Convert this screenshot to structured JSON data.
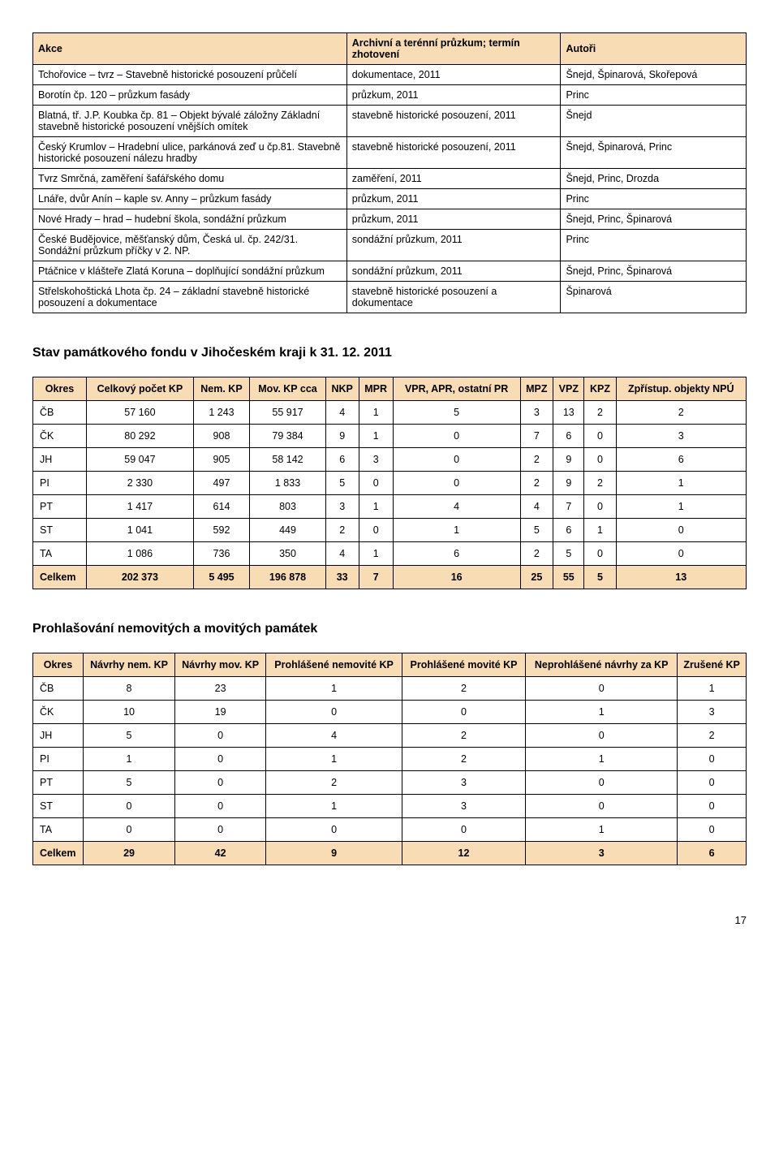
{
  "table1": {
    "headers": {
      "col1": "Akce",
      "col2": "Archivní a terénní průzkum; termín zhotovení",
      "col3": "Autoři"
    },
    "rows": [
      {
        "a": "Tchořovice – tvrz – Stavebně historické posouzení průčelí",
        "b": "dokumentace, 2011",
        "c": "Šnejd, Špinarová, Skořepová"
      },
      {
        "a": "Borotín čp. 120 – průzkum fasády",
        "b": "průzkum, 2011",
        "c": "Princ"
      },
      {
        "a": "Blatná, tř. J.P. Koubka čp. 81 – Objekt bývalé záložny Základní stavebně historické posouzení vnějších omítek",
        "b": "stavebně historické posouzení, 2011",
        "c": "Šnejd"
      },
      {
        "a": "Český Krumlov – Hradební ulice, parkánová zeď u čp.81. Stavebně historické posouzení nálezu hradby",
        "b": "stavebně historické posouzení, 2011",
        "c": "Šnejd, Špinarová, Princ"
      },
      {
        "a": "Tvrz Smrčná, zaměření šafářského domu",
        "b": "zaměření, 2011",
        "c": "Šnejd, Princ, Drozda"
      },
      {
        "a": "Lnáře, dvůr Anín – kaple sv. Anny – průzkum fasády",
        "b": "průzkum, 2011",
        "c": "Princ"
      },
      {
        "a": "Nové Hrady – hrad – hudební škola, sondážní průzkum",
        "b": "průzkum, 2011",
        "c": "Šnejd, Princ, Špinarová"
      },
      {
        "a": "České Budějovice, měšťanský dům, Česká ul. čp. 242/31. Sondážní průzkum příčky v 2. NP.",
        "b": "sondážní průzkum, 2011",
        "c": "Princ"
      },
      {
        "a": "Ptáčnice v klášteře Zlatá Koruna – doplňující sondážní průzkum",
        "b": "sondážní průzkum, 2011",
        "c": "Šnejd, Princ, Špinarová"
      },
      {
        "a": "Střelskohoštická Lhota čp. 24 – základní stavebně historické posouzení a dokumentace",
        "b": "stavebně historické posouzení a dokumentace",
        "c": "Špinarová"
      }
    ]
  },
  "section2_title": "Stav památkového fondu v Jihočeském kraji k 31. 12. 2011",
  "table2": {
    "headers": [
      "Okres",
      "Celkový počet KP",
      "Nem. KP",
      "Mov. KP cca",
      "NKP",
      "MPR",
      "VPR, APR, ostatní PR",
      "MPZ",
      "VPZ",
      "KPZ",
      "Zpřístup. objekty NPÚ"
    ],
    "rows": [
      [
        "ČB",
        "57 160",
        "1 243",
        "55 917",
        "4",
        "1",
        "5",
        "3",
        "13",
        "2",
        "2"
      ],
      [
        "ČK",
        "80 292",
        "908",
        "79 384",
        "9",
        "1",
        "0",
        "7",
        "6",
        "0",
        "3"
      ],
      [
        "JH",
        "59 047",
        "905",
        "58 142",
        "6",
        "3",
        "0",
        "2",
        "9",
        "0",
        "6"
      ],
      [
        "PI",
        "2 330",
        "497",
        "1 833",
        "5",
        "0",
        "0",
        "2",
        "9",
        "2",
        "1"
      ],
      [
        "PT",
        "1 417",
        "614",
        "803",
        "3",
        "1",
        "4",
        "4",
        "7",
        "0",
        "1"
      ],
      [
        "ST",
        "1 041",
        "592",
        "449",
        "2",
        "0",
        "1",
        "5",
        "6",
        "1",
        "0"
      ],
      [
        "TA",
        "1 086",
        "736",
        "350",
        "4",
        "1",
        "6",
        "2",
        "5",
        "0",
        "0"
      ]
    ],
    "total": [
      "Celkem",
      "202 373",
      "5 495",
      "196 878",
      "33",
      "7",
      "16",
      "25",
      "55",
      "5",
      "13"
    ]
  },
  "section3_title": "Prohlašování nemovitých a movitých památek",
  "table3": {
    "headers": [
      "Okres",
      "Návrhy nem. KP",
      "Návrhy mov. KP",
      "Prohlášené nemovité KP",
      "Prohlášené movité KP",
      "Neprohlášené návrhy za KP",
      "Zrušené KP"
    ],
    "rows": [
      [
        "ČB",
        "8",
        "23",
        "1",
        "2",
        "0",
        "1"
      ],
      [
        "ČK",
        "10",
        "19",
        "0",
        "0",
        "1",
        "3"
      ],
      [
        "JH",
        "5",
        "0",
        "4",
        "2",
        "0",
        "2"
      ],
      [
        "PI",
        "1",
        "0",
        "1",
        "2",
        "1",
        "0"
      ],
      [
        "PT",
        "5",
        "0",
        "2",
        "3",
        "0",
        "0"
      ],
      [
        "ST",
        "0",
        "0",
        "1",
        "3",
        "0",
        "0"
      ],
      [
        "TA",
        "0",
        "0",
        "0",
        "0",
        "1",
        "0"
      ]
    ],
    "total": [
      "Celkem",
      "29",
      "42",
      "9",
      "12",
      "3",
      "6"
    ]
  },
  "page_number": "17"
}
